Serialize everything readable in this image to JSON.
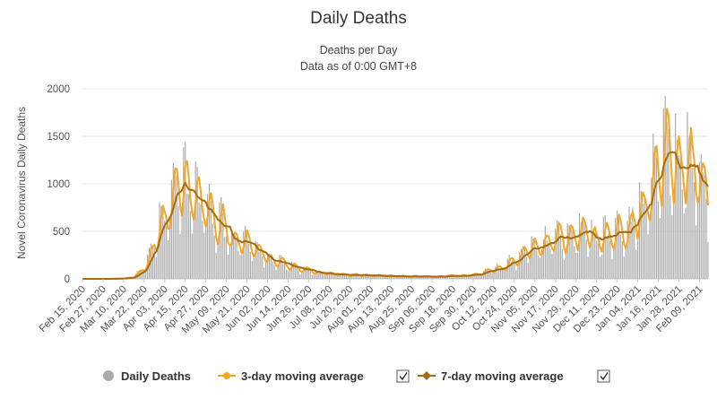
{
  "chart_data": {
    "type": "bar",
    "title": "Daily Deaths",
    "subtitle_lines": [
      "Deaths per Day",
      "Data as of 0:00 GMT+8"
    ],
    "ylabel": "Novel Coronavirus Daily Deaths",
    "xlabel": "",
    "ylim": [
      0,
      2000
    ],
    "yticks": [
      "0",
      "500",
      "1000",
      "1500",
      "2000"
    ],
    "x_start": "Feb 15, 2020",
    "x_end": "Feb 14, 2021",
    "x_ticks": [
      "Feb 15, 2020",
      "Feb 27, 2020",
      "Mar 10, 2020",
      "Mar 22, 2020",
      "Apr 03, 2020",
      "Apr 15, 2020",
      "Apr 27, 2020",
      "May 09, 2020",
      "May 21, 2020",
      "Jun 02, 2020",
      "Jun 14, 2020",
      "Jun 26, 2020",
      "Jul 08, 2020",
      "Jul 20, 2020",
      "Aug 01, 2020",
      "Aug 13, 2020",
      "Aug 25, 2020",
      "Sep 06, 2020",
      "Sep 18, 2020",
      "Sep 30, 2020",
      "Oct 12, 2020",
      "Oct 24, 2020",
      "Nov 05, 2020",
      "Nov 17, 2020",
      "Nov 29, 2020",
      "Dec 11, 2020",
      "Dec 23, 2020",
      "Jan 04, 2021",
      "Jan 16, 2021",
      "Jan 28, 2021",
      "Feb 09, 2021"
    ],
    "trend_anchors": [
      {
        "date": "Feb 15, 2020",
        "value": 0
      },
      {
        "date": "Mar 01, 2020",
        "value": 0
      },
      {
        "date": "Mar 10, 2020",
        "value": 5
      },
      {
        "date": "Mar 15, 2020",
        "value": 20
      },
      {
        "date": "Mar 20, 2020",
        "value": 80
      },
      {
        "date": "Mar 25, 2020",
        "value": 220
      },
      {
        "date": "Mar 29, 2020",
        "value": 420
      },
      {
        "date": "Apr 02, 2020",
        "value": 650
      },
      {
        "date": "Apr 07, 2020",
        "value": 870
      },
      {
        "date": "Apr 11, 2020",
        "value": 950
      },
      {
        "date": "Apr 15, 2020",
        "value": 935
      },
      {
        "date": "Apr 20, 2020",
        "value": 880
      },
      {
        "date": "Apr 26, 2020",
        "value": 760
      },
      {
        "date": "May 02, 2020",
        "value": 620
      },
      {
        "date": "May 08, 2020",
        "value": 500
      },
      {
        "date": "May 15, 2020",
        "value": 410
      },
      {
        "date": "May 22, 2020",
        "value": 330
      },
      {
        "date": "May 29, 2020",
        "value": 270
      },
      {
        "date": "Jun 05, 2020",
        "value": 200
      },
      {
        "date": "Jun 14, 2020",
        "value": 130
      },
      {
        "date": "Jun 24, 2020",
        "value": 90
      },
      {
        "date": "Jul 05, 2020",
        "value": 60
      },
      {
        "date": "Jul 20, 2020",
        "value": 40
      },
      {
        "date": "Aug 05, 2020",
        "value": 30
      },
      {
        "date": "Aug 25, 2020",
        "value": 25
      },
      {
        "date": "Sep 10, 2020",
        "value": 25
      },
      {
        "date": "Sep 25, 2020",
        "value": 35
      },
      {
        "date": "Oct 05, 2020",
        "value": 60
      },
      {
        "date": "Oct 15, 2020",
        "value": 110
      },
      {
        "date": "Oct 24, 2020",
        "value": 200
      },
      {
        "date": "Nov 02, 2020",
        "value": 300
      },
      {
        "date": "Nov 10, 2020",
        "value": 380
      },
      {
        "date": "Nov 20, 2020",
        "value": 440
      },
      {
        "date": "Nov 30, 2020",
        "value": 470
      },
      {
        "date": "Dec 08, 2020",
        "value": 440
      },
      {
        "date": "Dec 15, 2020",
        "value": 430
      },
      {
        "date": "Dec 22, 2020",
        "value": 450
      },
      {
        "date": "Dec 29, 2020",
        "value": 520
      },
      {
        "date": "Jan 04, 2021",
        "value": 680
      },
      {
        "date": "Jan 09, 2021",
        "value": 880
      },
      {
        "date": "Jan 14, 2021",
        "value": 1080
      },
      {
        "date": "Jan 20, 2021",
        "value": 1230
      },
      {
        "date": "Jan 25, 2021",
        "value": 1250
      },
      {
        "date": "Jan 30, 2021",
        "value": 1220
      },
      {
        "date": "Feb 04, 2021",
        "value": 1100
      },
      {
        "date": "Feb 09, 2021",
        "value": 950
      },
      {
        "date": "Feb 14, 2021",
        "value": 800
      }
    ],
    "series": [
      {
        "name": "Daily Deaths",
        "type": "bar",
        "color": "#aaaaaa"
      },
      {
        "name": "3-day moving average",
        "type": "line",
        "color": "#f5a623"
      },
      {
        "name": "7-day moving average",
        "type": "line",
        "color": "#a86a10"
      }
    ],
    "grid": true,
    "legend_position": "bottom"
  }
}
